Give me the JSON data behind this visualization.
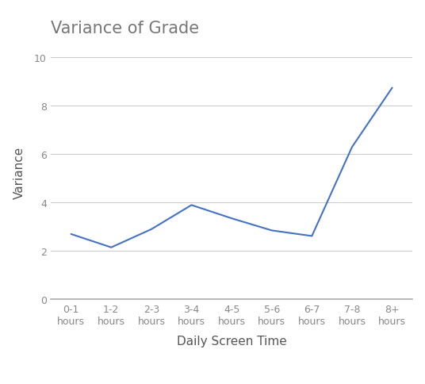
{
  "title": "Variance of Grade",
  "xlabel": "Daily Screen Time",
  "ylabel": "Variance",
  "categories": [
    "0-1\nhours",
    "1-2\nhours",
    "2-3\nhours",
    "3-4\nhours",
    "4-5\nhours",
    "5-6\nhours",
    "6-7\nhours",
    "7-8\nhours",
    "8+\nhours"
  ],
  "values": [
    2.7,
    2.15,
    2.9,
    3.9,
    3.35,
    2.85,
    2.62,
    6.3,
    8.75
  ],
  "line_color": "#4472C4",
  "ylim": [
    0,
    10.5
  ],
  "yticks": [
    0,
    2,
    4,
    6,
    8,
    10
  ],
  "background_color": "#ffffff",
  "grid_color": "#cccccc",
  "title_fontsize": 15,
  "axis_label_fontsize": 11,
  "tick_fontsize": 9,
  "title_color": "#777777",
  "tick_color": "#888888",
  "label_color": "#555555"
}
